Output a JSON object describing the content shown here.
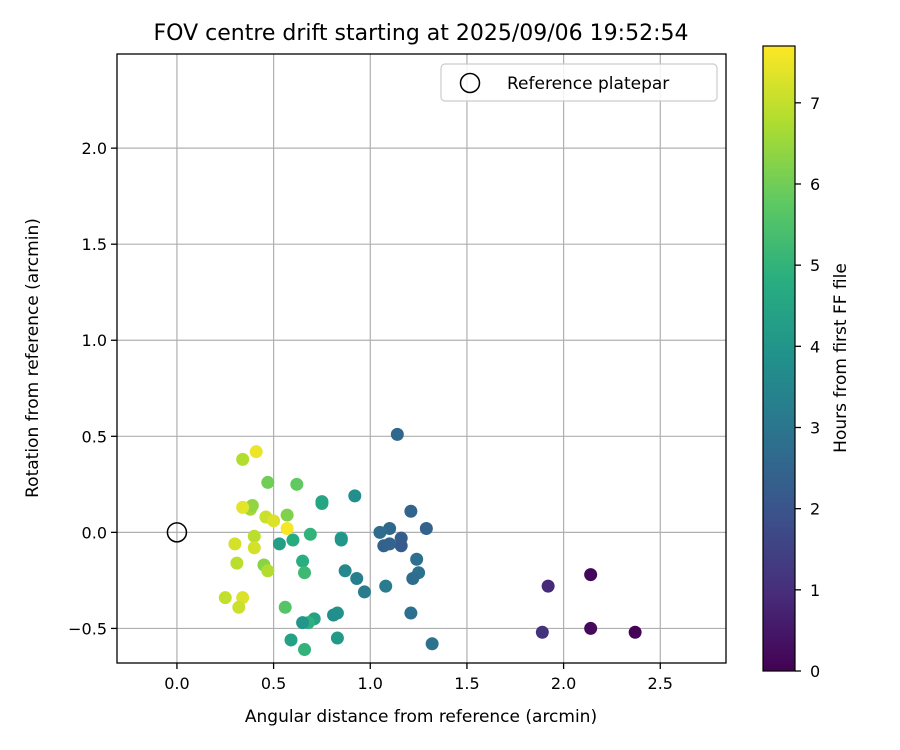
{
  "chart_data": {
    "type": "scatter",
    "title": "FOV centre drift starting at 2025/09/06 19:52:54",
    "xlabel": "Angular distance from reference (arcmin)",
    "ylabel": "Rotation from reference (arcmin)",
    "xlim": [
      -0.31,
      2.84
    ],
    "ylim": [
      -0.68,
      2.49
    ],
    "x_ticks": [
      0.0,
      0.5,
      1.0,
      1.5,
      2.0,
      2.5
    ],
    "x_tick_labels": [
      "0.0",
      "0.5",
      "1.0",
      "1.5",
      "2.0",
      "2.5"
    ],
    "y_ticks": [
      -0.5,
      0.0,
      0.5,
      1.0,
      1.5,
      2.0
    ],
    "y_tick_labels": [
      "−0.5",
      "0.0",
      "0.5",
      "1.0",
      "1.5",
      "2.0"
    ],
    "grid": true,
    "legend": {
      "position": "top-right",
      "entries": [
        {
          "label": "Reference platepar",
          "marker": "open-circle"
        }
      ],
      "reference_point": {
        "x": 0.0,
        "y": 0.0
      }
    },
    "colorbar": {
      "label": "Hours from first FF file",
      "range": [
        0,
        7.7
      ],
      "ticks": [
        0,
        1,
        2,
        3,
        4,
        5,
        6,
        7
      ],
      "tick_labels": [
        "0",
        "1",
        "2",
        "3",
        "4",
        "5",
        "6",
        "7"
      ],
      "colormap": "viridis"
    },
    "points": [
      {
        "x": 2.37,
        "y": -0.52,
        "h": 0.05
      },
      {
        "x": 2.14,
        "y": -0.22,
        "h": 0.15
      },
      {
        "x": 2.14,
        "y": -0.5,
        "h": 0.2
      },
      {
        "x": 1.92,
        "y": -0.28,
        "h": 0.9
      },
      {
        "x": 1.89,
        "y": -0.52,
        "h": 1.1
      },
      {
        "x": 1.14,
        "y": 0.51,
        "h": 2.6
      },
      {
        "x": 1.29,
        "y": 0.02,
        "h": 2.4
      },
      {
        "x": 1.21,
        "y": 0.11,
        "h": 2.5
      },
      {
        "x": 1.16,
        "y": -0.03,
        "h": 2.3
      },
      {
        "x": 1.16,
        "y": -0.07,
        "h": 2.2
      },
      {
        "x": 1.1,
        "y": 0.02,
        "h": 2.6
      },
      {
        "x": 1.1,
        "y": -0.06,
        "h": 2.5
      },
      {
        "x": 1.07,
        "y": -0.07,
        "h": 2.4
      },
      {
        "x": 1.05,
        "y": 0.0,
        "h": 2.7
      },
      {
        "x": 1.24,
        "y": -0.14,
        "h": 2.8
      },
      {
        "x": 1.25,
        "y": -0.21,
        "h": 2.9
      },
      {
        "x": 1.22,
        "y": -0.24,
        "h": 2.7
      },
      {
        "x": 1.21,
        "y": -0.42,
        "h": 2.8
      },
      {
        "x": 1.32,
        "y": -0.58,
        "h": 2.9
      },
      {
        "x": 1.08,
        "y": -0.28,
        "h": 3.2
      },
      {
        "x": 0.97,
        "y": -0.31,
        "h": 3.2
      },
      {
        "x": 0.93,
        "y": -0.24,
        "h": 3.3
      },
      {
        "x": 0.87,
        "y": -0.2,
        "h": 3.6
      },
      {
        "x": 0.92,
        "y": 0.19,
        "h": 3.8
      },
      {
        "x": 0.85,
        "y": -0.03,
        "h": 4.2
      },
      {
        "x": 0.85,
        "y": -0.04,
        "h": 4.0
      },
      {
        "x": 0.83,
        "y": -0.42,
        "h": 3.9
      },
      {
        "x": 0.81,
        "y": -0.43,
        "h": 3.8
      },
      {
        "x": 0.83,
        "y": -0.55,
        "h": 4.1
      },
      {
        "x": 0.75,
        "y": 0.15,
        "h": 4.6
      },
      {
        "x": 0.75,
        "y": 0.16,
        "h": 4.5
      },
      {
        "x": 0.71,
        "y": -0.45,
        "h": 4.4
      },
      {
        "x": 0.68,
        "y": -0.47,
        "h": 4.9
      },
      {
        "x": 0.65,
        "y": -0.47,
        "h": 4.0
      },
      {
        "x": 0.69,
        "y": -0.01,
        "h": 5.0
      },
      {
        "x": 0.6,
        "y": -0.04,
        "h": 4.7
      },
      {
        "x": 0.53,
        "y": -0.06,
        "h": 4.3
      },
      {
        "x": 0.59,
        "y": -0.56,
        "h": 4.4
      },
      {
        "x": 0.66,
        "y": -0.61,
        "h": 5.0
      },
      {
        "x": 0.65,
        "y": -0.15,
        "h": 4.8
      },
      {
        "x": 0.66,
        "y": -0.21,
        "h": 5.2
      },
      {
        "x": 0.56,
        "y": -0.39,
        "h": 5.6
      },
      {
        "x": 0.62,
        "y": 0.25,
        "h": 5.8
      },
      {
        "x": 0.47,
        "y": 0.26,
        "h": 6.0
      },
      {
        "x": 0.57,
        "y": 0.09,
        "h": 6.2
      },
      {
        "x": 0.45,
        "y": -0.17,
        "h": 6.3
      },
      {
        "x": 0.47,
        "y": -0.2,
        "h": 6.8
      },
      {
        "x": 0.38,
        "y": 0.12,
        "h": 6.6
      },
      {
        "x": 0.39,
        "y": 0.14,
        "h": 6.4
      },
      {
        "x": 0.4,
        "y": -0.02,
        "h": 6.9
      },
      {
        "x": 0.4,
        "y": -0.08,
        "h": 7.2
      },
      {
        "x": 0.34,
        "y": 0.38,
        "h": 6.8
      },
      {
        "x": 0.41,
        "y": 0.42,
        "h": 7.5
      },
      {
        "x": 0.46,
        "y": 0.08,
        "h": 7.1
      },
      {
        "x": 0.5,
        "y": 0.06,
        "h": 7.3
      },
      {
        "x": 0.57,
        "y": 0.02,
        "h": 7.6
      },
      {
        "x": 0.34,
        "y": 0.13,
        "h": 7.4
      },
      {
        "x": 0.3,
        "y": -0.06,
        "h": 7.2
      },
      {
        "x": 0.31,
        "y": -0.16,
        "h": 6.9
      },
      {
        "x": 0.25,
        "y": -0.34,
        "h": 7.0
      },
      {
        "x": 0.34,
        "y": -0.34,
        "h": 7.3
      },
      {
        "x": 0.32,
        "y": -0.39,
        "h": 7.1
      }
    ]
  }
}
